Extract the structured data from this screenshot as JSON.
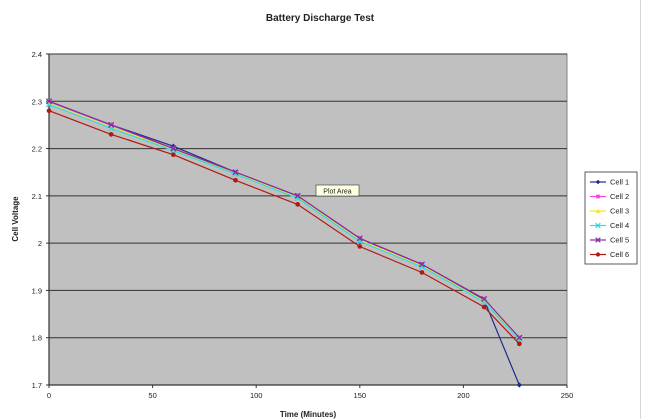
{
  "chart_data": {
    "type": "line",
    "title": "Battery Discharge Test",
    "xlabel": "Time (Minutes)",
    "ylabel": "Cell Voltage",
    "xlim": [
      0,
      250
    ],
    "ylim": [
      1.7,
      2.4
    ],
    "x_ticks": [
      0,
      50,
      100,
      150,
      200,
      250
    ],
    "y_ticks": [
      "1.7",
      "1.8",
      "1.9",
      "2",
      "2.1",
      "2.2",
      "2.3",
      "2.4"
    ],
    "grid": "horizontal",
    "plot_background": "#c0c0c0",
    "legend_position": "right",
    "annotation": "Plot Area",
    "series": [
      {
        "name": "Cell 1",
        "color": "#1f2a8c",
        "marker": "diamond",
        "x": [
          0,
          30,
          60,
          90,
          120,
          150,
          180,
          210,
          227
        ],
        "y": [
          2.3,
          2.25,
          2.205,
          2.15,
          2.1,
          2.01,
          1.955,
          1.88,
          1.7
        ]
      },
      {
        "name": "Cell 2",
        "color": "#ff3fd7",
        "marker": "square",
        "x": [
          0,
          30,
          60,
          90,
          120,
          150,
          180,
          210,
          227
        ],
        "y": [
          2.3,
          2.25,
          2.2,
          2.15,
          2.1,
          2.01,
          1.955,
          1.882,
          1.8
        ]
      },
      {
        "name": "Cell 3",
        "color": "#f5e629",
        "marker": "triangle",
        "x": [
          0,
          30,
          60,
          90,
          120,
          150,
          180,
          210,
          227
        ],
        "y": [
          2.295,
          2.245,
          2.198,
          2.148,
          2.097,
          2.006,
          1.952,
          1.878,
          1.797
        ]
      },
      {
        "name": "Cell 4",
        "color": "#2fd9e6",
        "marker": "x",
        "x": [
          0,
          30,
          60,
          90,
          120,
          150,
          180,
          210,
          227
        ],
        "y": [
          2.293,
          2.243,
          2.196,
          2.146,
          2.095,
          2.004,
          1.95,
          1.876,
          1.795
        ]
      },
      {
        "name": "Cell 5",
        "color": "#8a2a9c",
        "marker": "x",
        "x": [
          0,
          30,
          60,
          90,
          120,
          150,
          180,
          210,
          227
        ],
        "y": [
          2.3,
          2.25,
          2.2,
          2.15,
          2.1,
          2.01,
          1.955,
          1.882,
          1.8
        ]
      },
      {
        "name": "Cell 6",
        "color": "#b11a12",
        "marker": "circle",
        "x": [
          0,
          30,
          60,
          90,
          120,
          150,
          180,
          210,
          227
        ],
        "y": [
          2.28,
          2.23,
          2.187,
          2.133,
          2.082,
          1.993,
          1.938,
          1.865,
          1.787
        ]
      }
    ]
  }
}
